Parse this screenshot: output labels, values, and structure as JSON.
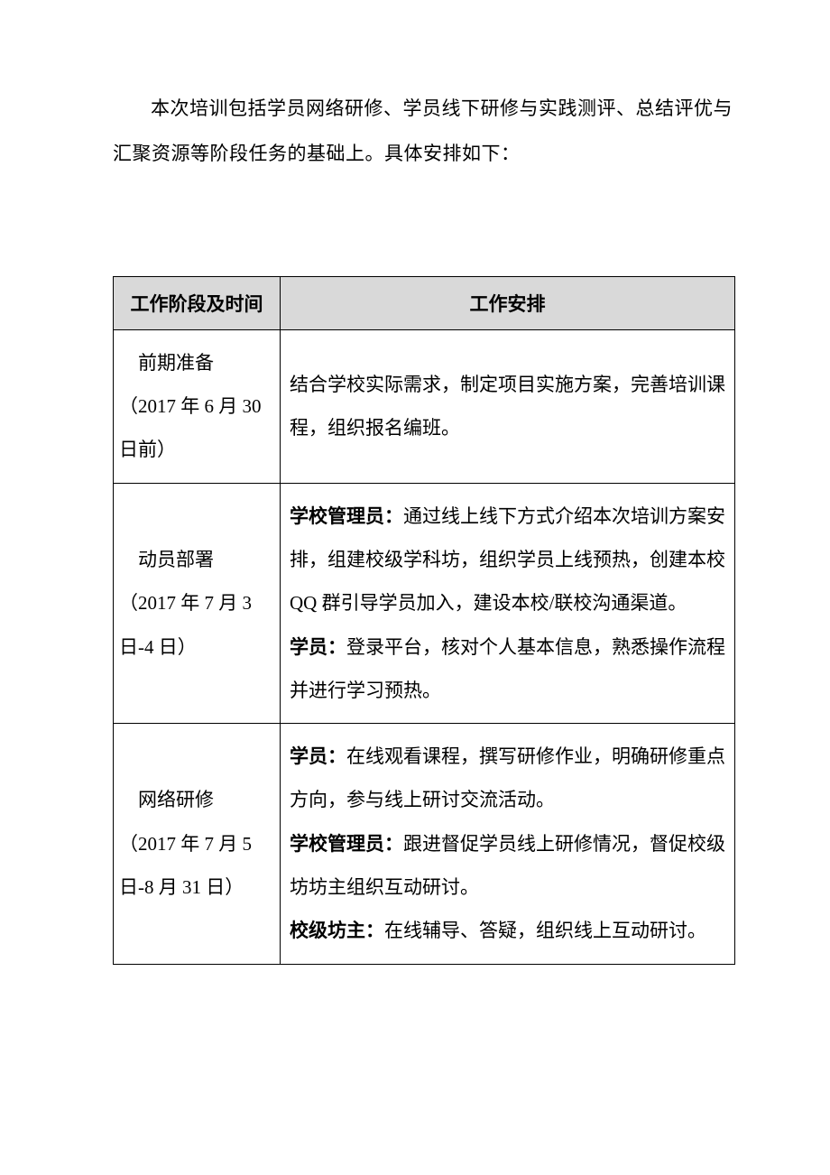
{
  "intro": {
    "text": "本次培训包括学员网络研修、学员线下研修与实践测评、总结评优与汇聚资源等阶段任务的基础上。具体安排如下："
  },
  "table": {
    "headers": {
      "col1": "工作阶段及时间",
      "col2": "工作安排"
    },
    "rows": [
      {
        "stage_title": "前期准备",
        "stage_date": "（2017 年 6 月 30 日前）",
        "content_parts": [
          {
            "bold": false,
            "text": "结合学校实际需求，制定项目实施方案，完善培训课程，组织报名编班。"
          }
        ]
      },
      {
        "stage_title": "动员部署",
        "stage_date": "（2017 年 7 月 3 日-4 日）",
        "content_parts": [
          {
            "bold": true,
            "text": "学校管理员："
          },
          {
            "bold": false,
            "text": "通过线上线下方式介绍本次培训方案安排，组建校级学科坊，组织学员上线预热，创建本校 QQ 群引导学员加入，建设本校/联校沟通渠道。"
          },
          {
            "br": true
          },
          {
            "bold": true,
            "text": "学员："
          },
          {
            "bold": false,
            "text": "登录平台，核对个人基本信息，熟悉操作流程并进行学习预热。"
          }
        ]
      },
      {
        "stage_title": "网络研修",
        "stage_date": "（2017 年 7 月 5 日-8 月 31 日）",
        "content_parts": [
          {
            "bold": true,
            "text": "学员："
          },
          {
            "bold": false,
            "text": "在线观看课程，撰写研修作业，明确研修重点方向，参与线上研讨交流活动。"
          },
          {
            "br": true
          },
          {
            "bold": true,
            "text": "学校管理员："
          },
          {
            "bold": false,
            "text": "跟进督促学员线上研修情况，督促校级坊坊主组织互动研讨。"
          },
          {
            "br": true
          },
          {
            "bold": true,
            "text": "校级坊主："
          },
          {
            "bold": false,
            "text": "在线辅导、答疑，组织线上互动研讨。"
          }
        ]
      }
    ]
  },
  "colors": {
    "header_bg": "#d9d9d9",
    "border": "#000000",
    "text": "#000000",
    "page_bg": "#ffffff"
  },
  "typography": {
    "body_fontsize": 21,
    "line_height": 2.3,
    "font_family": "SimSun"
  }
}
